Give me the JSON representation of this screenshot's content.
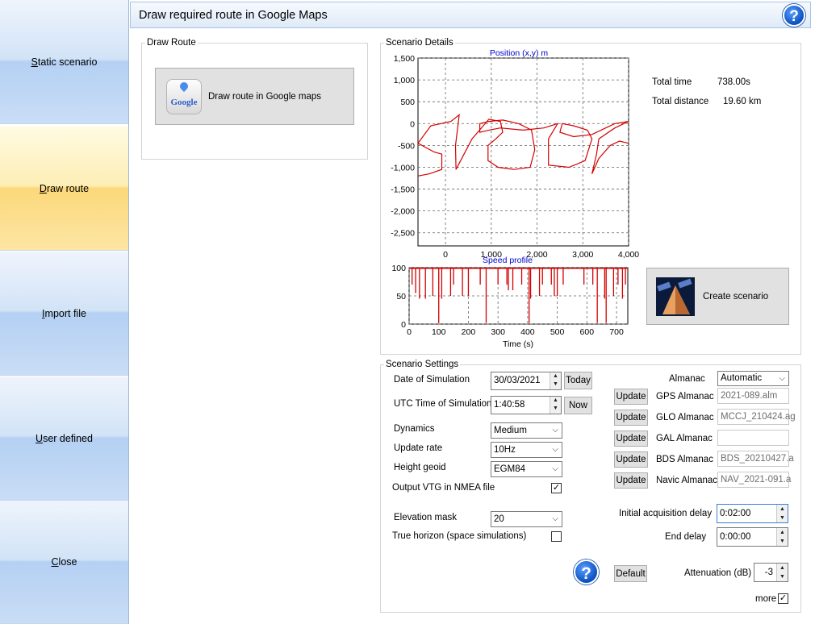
{
  "nav": {
    "items": [
      {
        "label": "Static scenario",
        "mnemonic_first": "S",
        "rest": "tatic scenario"
      },
      {
        "label": "Draw route",
        "mnemonic_first": "D",
        "rest": "raw route"
      },
      {
        "label": "Import file",
        "mnemonic_first": "I",
        "rest": "mport file"
      },
      {
        "label": "User defined",
        "mnemonic_first": "U",
        "rest": "ser defined"
      },
      {
        "label": "Close",
        "mnemonic_first": "C",
        "rest": "lose"
      }
    ],
    "selected": "Draw route"
  },
  "header": {
    "title": "Draw required route in Google Maps",
    "help": "?"
  },
  "draw_route": {
    "legend": "Draw Route",
    "google_logo": "Google",
    "button_label": "Draw route in Google maps"
  },
  "scenario_details": {
    "legend": "Scenario Details",
    "total_time_label": "Total time",
    "total_time_value": "738.00s",
    "total_distance_label": "Total distance",
    "total_distance_value": "19.60 km",
    "create_button": "Create scenario"
  },
  "chart_data": [
    {
      "type": "line",
      "title": "Position (x,y) m",
      "xlabel": "",
      "ylabel": "",
      "xlim": [
        -600,
        4000
      ],
      "ylim": [
        -2800,
        1500
      ],
      "x_ticks": [
        "0",
        "1,000",
        "2,000",
        "3,000",
        "4,000"
      ],
      "y_ticks": [
        "1,500",
        "1,000",
        "500",
        "0",
        "-500",
        "-1,000",
        "-1,500",
        "-2,000",
        "-2,500"
      ],
      "grid": true,
      "color": "#d40000",
      "series": [
        {
          "x": [
            -600,
            -350,
            -80,
            -80,
            -250,
            -600,
            -320,
            120,
            300,
            220,
            230,
            580,
            950,
            1200,
            1250,
            1100,
            930,
            930,
            1150,
            1500,
            1850,
            1950,
            1880,
            1600,
            1250,
            950,
            750,
            750,
            950,
            1200,
            1700,
            2150,
            2450,
            2250,
            2250,
            2700,
            3050,
            3200,
            3100,
            2800,
            2550,
            2500,
            2800,
            3200,
            3500,
            3700,
            4000,
            3700,
            3350,
            3300,
            3200,
            3350,
            3600,
            3800,
            4000
          ],
          "y": [
            -1200,
            -1150,
            -1050,
            -700,
            -650,
            -450,
            -50,
            50,
            200,
            -500,
            -1050,
            -350,
            100,
            50,
            -200,
            -350,
            -500,
            -850,
            -1000,
            -1050,
            -1000,
            -600,
            -150,
            0,
            80,
            50,
            0,
            -200,
            -150,
            -100,
            -150,
            -100,
            0,
            -350,
            -950,
            -1000,
            -850,
            -350,
            -150,
            -50,
            0,
            -200,
            -300,
            -250,
            -100,
            0,
            50,
            -100,
            -350,
            -700,
            -1150,
            -800,
            -500,
            -400,
            -450
          ]
        }
      ]
    },
    {
      "type": "line",
      "title": "Speed profile",
      "xlabel": "Time (s)",
      "ylabel": "",
      "xlim": [
        0,
        738
      ],
      "ylim": [
        0,
        100
      ],
      "x_ticks": [
        "0",
        "100",
        "200",
        "300",
        "400",
        "500",
        "600",
        "700"
      ],
      "y_ticks": [
        "100",
        "50",
        "0"
      ],
      "grid": true,
      "color": "#d40000",
      "base_speed": 100,
      "dips": [
        {
          "t": 10,
          "v": 70
        },
        {
          "t": 22,
          "v": 55
        },
        {
          "t": 35,
          "v": 45
        },
        {
          "t": 55,
          "v": 45
        },
        {
          "t": 80,
          "v": 50
        },
        {
          "t": 100,
          "v": 2
        },
        {
          "t": 110,
          "v": 45
        },
        {
          "t": 140,
          "v": 50
        },
        {
          "t": 150,
          "v": 70
        },
        {
          "t": 180,
          "v": 50
        },
        {
          "t": 200,
          "v": 50
        },
        {
          "t": 240,
          "v": 70
        },
        {
          "t": 260,
          "v": 2
        },
        {
          "t": 300,
          "v": 70
        },
        {
          "t": 330,
          "v": 70
        },
        {
          "t": 335,
          "v": 60
        },
        {
          "t": 350,
          "v": 60
        },
        {
          "t": 380,
          "v": 70
        },
        {
          "t": 405,
          "v": 2
        },
        {
          "t": 410,
          "v": 45
        },
        {
          "t": 440,
          "v": 50
        },
        {
          "t": 450,
          "v": 70
        },
        {
          "t": 480,
          "v": 70
        },
        {
          "t": 490,
          "v": 50
        },
        {
          "t": 500,
          "v": 50
        },
        {
          "t": 520,
          "v": 70
        },
        {
          "t": 590,
          "v": 70
        },
        {
          "t": 620,
          "v": 70
        },
        {
          "t": 635,
          "v": 2
        },
        {
          "t": 660,
          "v": 45
        },
        {
          "t": 665,
          "v": 2
        },
        {
          "t": 690,
          "v": 50
        },
        {
          "t": 705,
          "v": 70
        },
        {
          "t": 720,
          "v": 45
        },
        {
          "t": 730,
          "v": 70
        }
      ]
    }
  ],
  "settings": {
    "legend": "Scenario Settings",
    "date_label": "Date of Simulation",
    "date_value": "30/03/2021",
    "today_button": "Today",
    "utc_label": "UTC Time of Simulation",
    "utc_value": "1:40:58",
    "now_button": "Now",
    "dynamics_label": "Dynamics",
    "dynamics_value": "Medium",
    "update_rate_label": "Update rate",
    "update_rate_value": "10Hz",
    "height_geoid_label": "Height geoid",
    "height_geoid_value": "EGM84",
    "vtg_label": "Output VTG in NMEA file",
    "vtg_checked": true,
    "elevation_label": "Elevation mask",
    "elevation_value": "20",
    "horizon_label": "True horizon (space simulations)",
    "horizon_checked": false,
    "almanac_label": "Almanac",
    "almanac_value": "Automatic",
    "update_label": "Update",
    "gps_label": "GPS Almanac",
    "gps_value": "2021-089.alm",
    "glo_label": "GLO Almanac",
    "glo_value": "MCCJ_210424.ag",
    "gal_label": "GAL Almanac",
    "gal_value": "",
    "bds_label": "BDS Almanac",
    "bds_value": "BDS_20210427.a",
    "navic_label": "Navic Almanac",
    "navic_value": "NAV_2021-091.a",
    "init_delay_label": "Initial acquisition delay",
    "init_delay_value": "0:02:00",
    "end_delay_label": "End delay",
    "end_delay_value": "0:00:00",
    "default_button": "Default",
    "attenuation_label": "Attenuation (dB)",
    "attenuation_value": "-3",
    "more_label": "more",
    "more_checked": true
  },
  "colors": {
    "accent": "#0b4fc0",
    "plot": "#d40000",
    "nav_selected": "#fbd87a",
    "nav": "#b4d0f3"
  }
}
